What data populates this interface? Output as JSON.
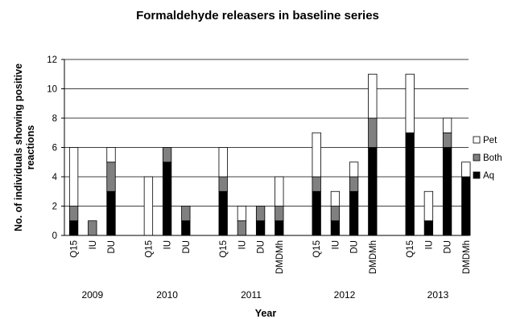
{
  "chart_data": {
    "type": "bar",
    "stacked": true,
    "title": "Formaldehyde releasers in baseline series",
    "xlabel": "Year",
    "ylabel": "No. of individuals showing positive reactions",
    "ylim": [
      0,
      12
    ],
    "yticks": [
      "0",
      "2",
      "4",
      "6",
      "8",
      "10",
      "12"
    ],
    "grid": true,
    "legend": "right",
    "groups": [
      {
        "year": "2009",
        "categories": [
          "Q15",
          "IU",
          "DU"
        ]
      },
      {
        "year": "2010",
        "categories": [
          "Q15",
          "IU",
          "DU"
        ]
      },
      {
        "year": "2011",
        "categories": [
          "Q15",
          "IU",
          "DU",
          "DMDMh"
        ]
      },
      {
        "year": "2012",
        "categories": [
          "Q15",
          "IU",
          "DU",
          "DMDMh"
        ]
      },
      {
        "year": "2013",
        "categories": [
          "Q15",
          "IU",
          "DU",
          "DMDMh"
        ]
      }
    ],
    "series": [
      {
        "name": "Aq",
        "color": "#000000",
        "values": [
          1,
          0,
          3,
          0,
          5,
          1,
          3,
          0,
          1,
          1,
          3,
          1,
          3,
          6,
          7,
          1,
          6,
          4
        ]
      },
      {
        "name": "Both",
        "color": "#808080",
        "values": [
          1,
          1,
          2,
          0,
          1,
          1,
          1,
          1,
          1,
          1,
          1,
          1,
          1,
          2,
          0,
          0,
          1,
          0
        ]
      },
      {
        "name": "Pet",
        "color": "#ffffff",
        "values": [
          4,
          0,
          1,
          4,
          0,
          0,
          2,
          1,
          0,
          2,
          3,
          1,
          1,
          3,
          4,
          2,
          1,
          1
        ]
      }
    ]
  }
}
